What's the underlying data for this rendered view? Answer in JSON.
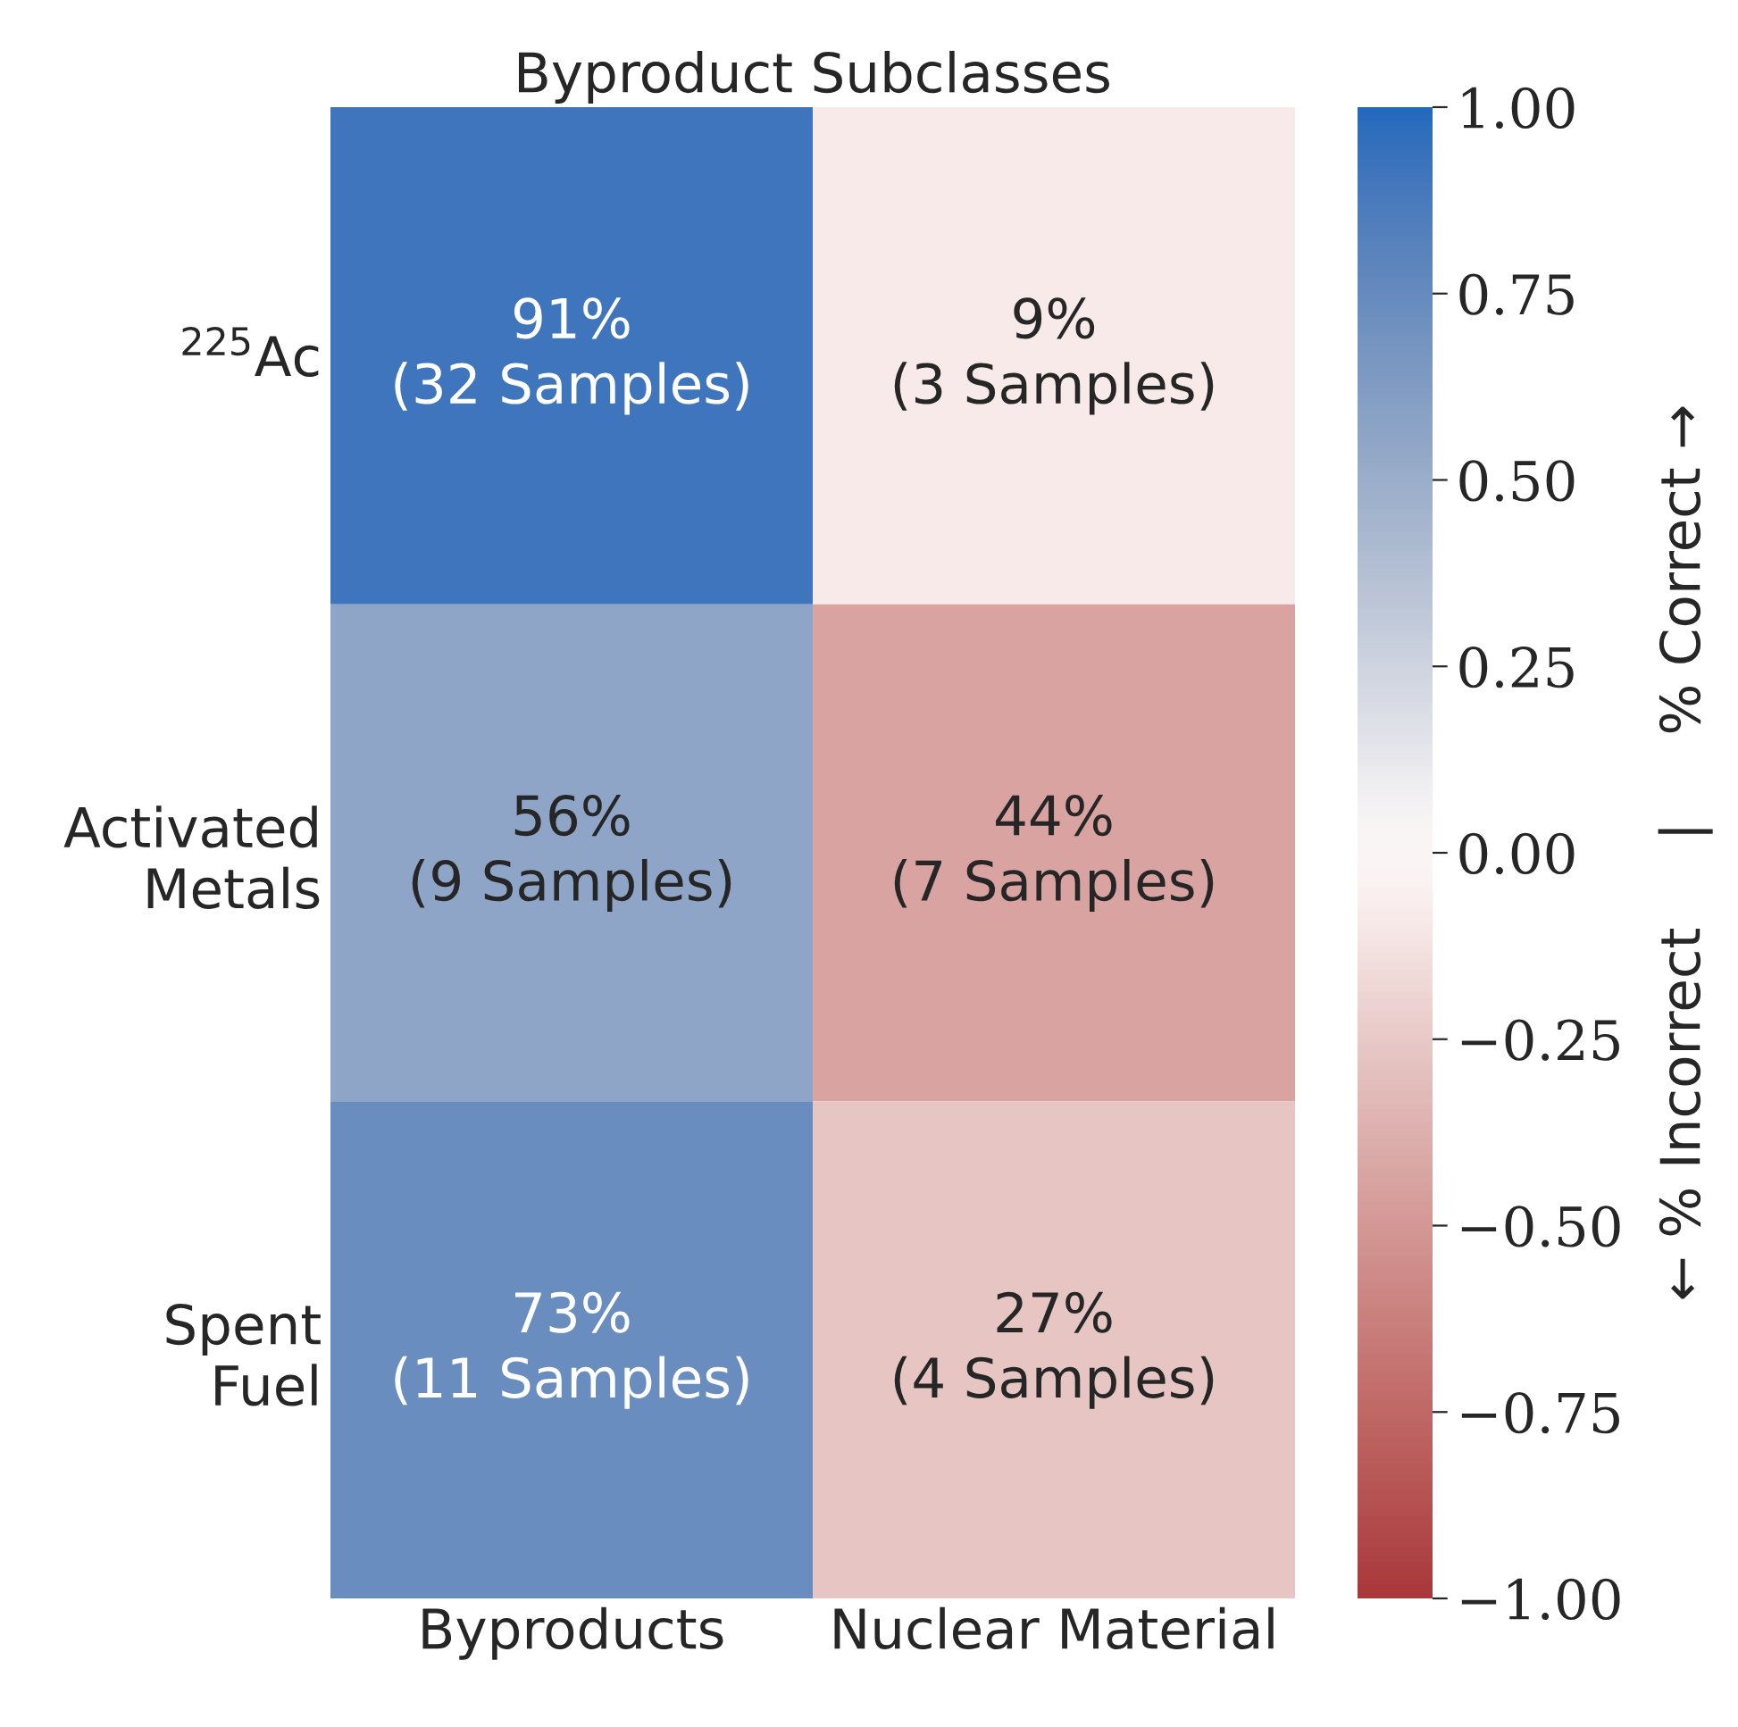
{
  "chart_data": {
    "type": "heatmap",
    "title": "Byproduct Subclasses",
    "categories": [
      "Byproducts",
      "Nuclear Material"
    ],
    "y_categories": [
      "$^{225}$Ac",
      "Activated\nMetals",
      "Spent\nFuel"
    ],
    "cells": [
      [
        0.91,
        -0.09
      ],
      [
        0.56,
        -0.44
      ],
      [
        0.73,
        -0.27
      ]
    ],
    "cell_labels": [
      [
        "91%\n(32 Samples)",
        "9%\n(3 Samples)"
      ],
      [
        "56%\n(9 Samples)",
        "44%\n(7 Samples)"
      ],
      [
        "73%\n(11 Samples)",
        "27%\n(4 Samples)"
      ]
    ],
    "clim": [
      -1,
      1
    ],
    "cticks": [
      {
        "value": -1,
        "label": "−1.00"
      },
      {
        "value": -0.75,
        "label": "−0.75"
      },
      {
        "value": -0.5,
        "label": "−0.50"
      },
      {
        "value": -0.25,
        "label": "−0.25"
      },
      {
        "value": 0,
        "label": "0.00"
      },
      {
        "value": 0.25,
        "label": "0.25"
      },
      {
        "value": 0.5,
        "label": "0.50"
      },
      {
        "value": 0.75,
        "label": "0.75"
      },
      {
        "value": 1,
        "label": "1.00"
      }
    ],
    "clabel": "← % Incorrect     |     % Correct →"
  }
}
